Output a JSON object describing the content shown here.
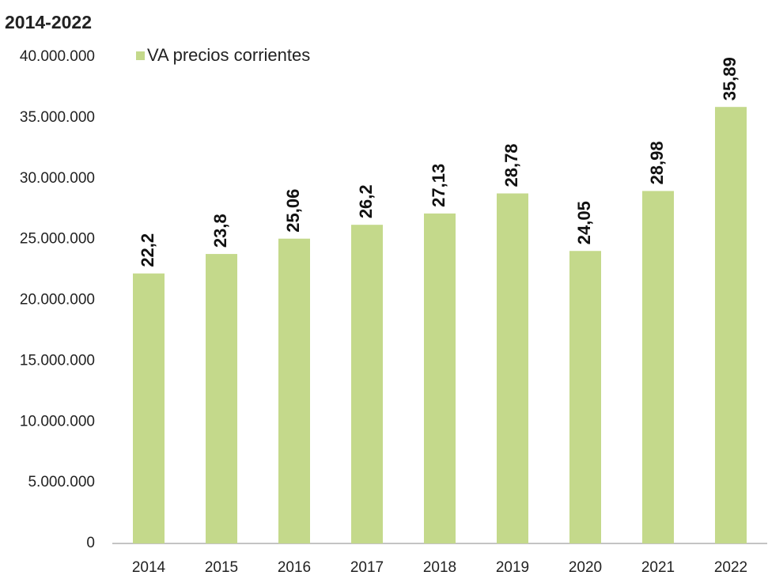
{
  "chart_data": {
    "type": "bar",
    "title": "2014-2022",
    "categories": [
      "2014",
      "2015",
      "2016",
      "2017",
      "2018",
      "2019",
      "2020",
      "2021",
      "2022"
    ],
    "series": [
      {
        "name": "VA precios corrientes",
        "color": "#c4d98b",
        "values": [
          22200000,
          23800000,
          25060000,
          26200000,
          27130000,
          28780000,
          24050000,
          28980000,
          35890000
        ],
        "value_labels": [
          "22,2",
          "23,8",
          "25,06",
          "26,2",
          "27,13",
          "28,78",
          "24,05",
          "28,98",
          "35,89"
        ]
      }
    ],
    "ylim": [
      0,
      40000000
    ],
    "yticks": [
      0,
      {
        "value": 5000000,
        "label": "5.000.000"
      },
      {
        "value": 10000000,
        "label": "10.000.000"
      },
      {
        "value": 15000000,
        "label": "15.000.000"
      },
      {
        "value": 20000000,
        "label": "20.000.000"
      },
      {
        "value": 25000000,
        "label": "25.000.000"
      },
      {
        "value": 30000000,
        "label": "30.000.000"
      },
      {
        "value": 35000000,
        "label": "35.000.000"
      },
      {
        "value": 40000000,
        "label": "40.000.000"
      }
    ],
    "grid": false,
    "legend": "top-left"
  }
}
